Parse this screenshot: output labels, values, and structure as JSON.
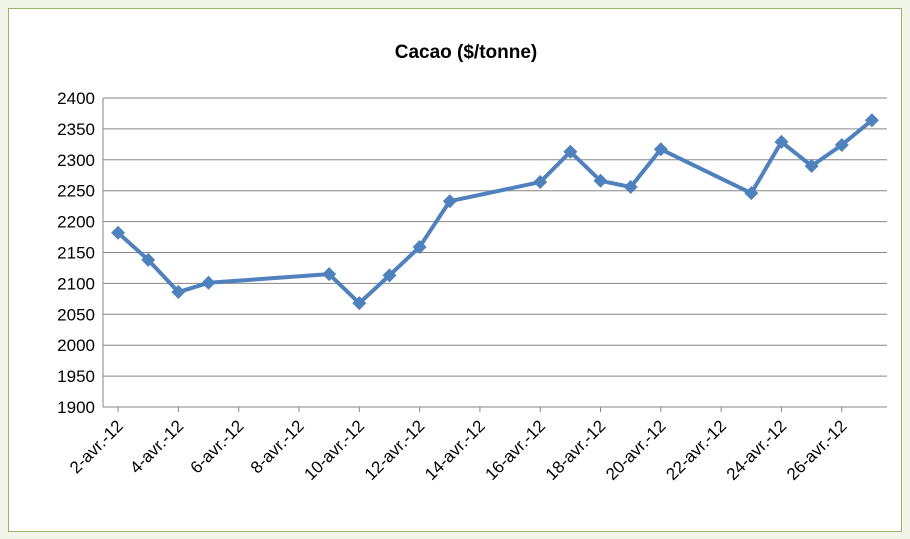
{
  "chart_data": {
    "type": "line",
    "title": "Cacao ($/tonne)",
    "x": [
      "2012-04-02",
      "2012-04-03",
      "2012-04-04",
      "2012-04-05",
      "2012-04-09",
      "2012-04-10",
      "2012-04-11",
      "2012-04-12",
      "2012-04-13",
      "2012-04-16",
      "2012-04-17",
      "2012-04-18",
      "2012-04-19",
      "2012-04-20",
      "2012-04-23",
      "2012-04-24",
      "2012-04-25",
      "2012-04-26",
      "2012-04-27"
    ],
    "series": [
      {
        "name": "Cacao",
        "color": "#4f81bd",
        "values": [
          2182,
          2138,
          2086,
          2101,
          2115,
          2068,
          2113,
          2159,
          2233,
          2264,
          2313,
          2266,
          2256,
          2317,
          2246,
          2329,
          2290,
          2324,
          2364
        ]
      }
    ],
    "xlim": [
      "2012-04-01T12:00",
      "2012-04-27T12:00"
    ],
    "xticks": [
      {
        "value": "2012-04-02",
        "label": "2-avr.-12"
      },
      {
        "value": "2012-04-04",
        "label": "4-avr.-12"
      },
      {
        "value": "2012-04-06",
        "label": "6-avr.-12"
      },
      {
        "value": "2012-04-08",
        "label": "8-avr.-12"
      },
      {
        "value": "2012-04-10",
        "label": "10-avr.-12"
      },
      {
        "value": "2012-04-12",
        "label": "12-avr.-12"
      },
      {
        "value": "2012-04-14",
        "label": "14-avr.-12"
      },
      {
        "value": "2012-04-16",
        "label": "16-avr.-12"
      },
      {
        "value": "2012-04-18",
        "label": "18-avr.-12"
      },
      {
        "value": "2012-04-20",
        "label": "20-avr.-12"
      },
      {
        "value": "2012-04-22",
        "label": "22-avr.-12"
      },
      {
        "value": "2012-04-24",
        "label": "24-avr.-12"
      },
      {
        "value": "2012-04-26",
        "label": "26-avr.-12"
      }
    ],
    "ylim": [
      1900,
      2400
    ],
    "yticks": [
      1900,
      1950,
      2000,
      2050,
      2100,
      2150,
      2200,
      2250,
      2300,
      2350,
      2400
    ],
    "grid": true
  }
}
